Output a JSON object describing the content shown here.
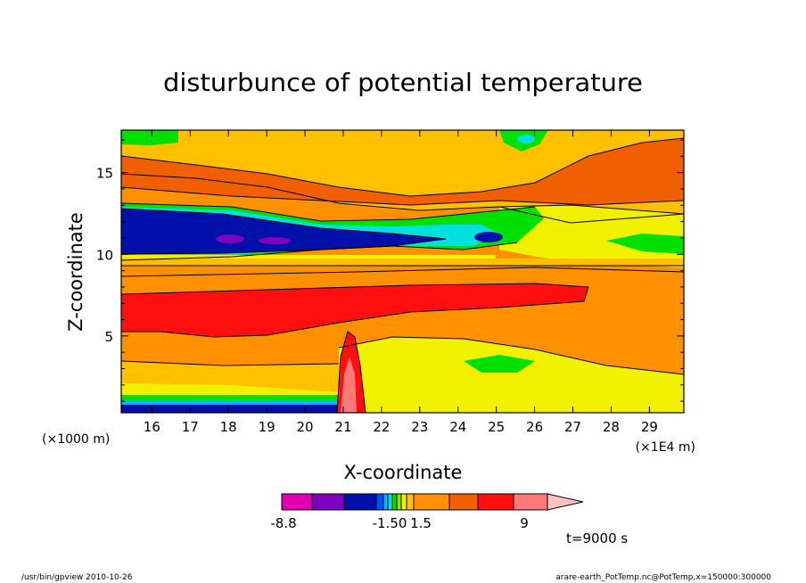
{
  "chart_data": {
    "type": "heatmap",
    "title": "disturbunce of potential temperature",
    "xlabel": "X-coordinate",
    "ylabel": "Z-coordinate",
    "x_unit_left": "(×1000 m)",
    "x_unit_right": "(×1E4 m)",
    "xlim": [
      15.2,
      29.9
    ],
    "ylim": [
      0.3,
      17.6
    ],
    "x_ticks": [
      16,
      17,
      18,
      19,
      20,
      21,
      22,
      23,
      24,
      25,
      26,
      27,
      28,
      29
    ],
    "y_ticks": [
      5,
      10,
      15
    ],
    "colorbar": {
      "colors": [
        "#e000b0",
        "#8000c0",
        "#0010a8",
        "#0050ff",
        "#00b8ff",
        "#00e0e0",
        "#00e000",
        "#90e000",
        "#f0f000",
        "#ffc000",
        "#ff9000",
        "#f06000",
        "#ff1010",
        "#ff7878",
        "#ffc0c0"
      ],
      "labels": [
        "-8.8",
        "-1.50",
        "1.5",
        "9"
      ]
    },
    "annotation": "t=9000 s"
  },
  "footer": {
    "left": "/usr/bin/gpview   2010-10-26",
    "right": "arare-earth_PotTemp.nc@PotTemp,x=150000:300000"
  }
}
